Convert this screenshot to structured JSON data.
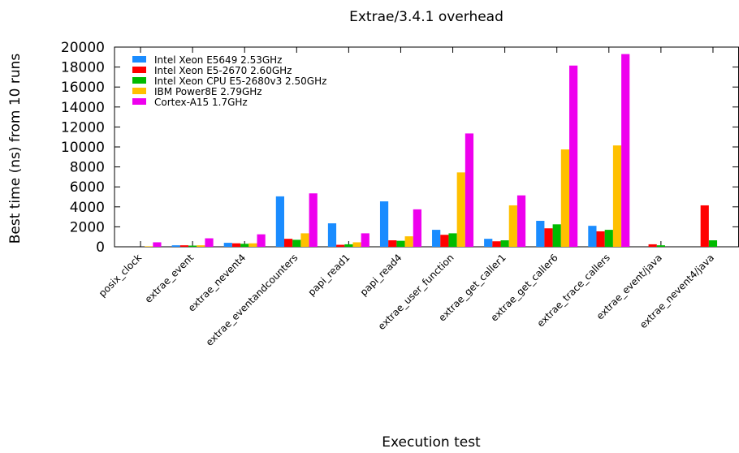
{
  "chart_data": {
    "type": "bar",
    "title": "Extrae/3.4.1 overhead",
    "xlabel": "Execution test",
    "ylabel": "Best time (ns) from 10 runs",
    "ylim": [
      0,
      20000
    ],
    "yticks": [
      0,
      2000,
      4000,
      6000,
      8000,
      10000,
      12000,
      14000,
      16000,
      18000,
      20000
    ],
    "grid": false,
    "legend_position": "top-left",
    "categories": [
      "posix_clock",
      "extrae_event",
      "extrae_nevent4",
      "extrae_eventandcounters",
      "papi_read1",
      "papi_read4",
      "extrae_user_function",
      "extrae_get_caller1",
      "extrae_get_caller6",
      "extrae_trace_callers",
      "extrae_event/java",
      "extrae_nevent4/java"
    ],
    "category_labels": [
      "posix_clock",
      "extrae_event",
      "extrae_nevent4",
      "extrae_eventandcounters",
      "papi_read1",
      "papi_read4",
      "extrae_user_function",
      "extrae_get_caller1",
      "extrae_get_caller6",
      "extrae_trace_callers",
      "extrae_event/java",
      "extrae_nevent4/java"
    ],
    "series": [
      {
        "name": "Intel Xeon E5649 2.53GHz",
        "color": "#1a8cff",
        "values": [
          0,
          150,
          400,
          5050,
          2350,
          4550,
          1700,
          800,
          2600,
          2100,
          0,
          0
        ]
      },
      {
        "name": "Intel Xeon E5-2670 2.60GHz",
        "color": "#ff0000",
        "values": [
          0,
          150,
          350,
          800,
          200,
          650,
          1200,
          550,
          1850,
          1550,
          250,
          4150
        ]
      },
      {
        "name": "Intel Xeon CPU E5-2680v3 2.50GHz",
        "color": "#00bb00",
        "values": [
          0,
          120,
          300,
          700,
          250,
          600,
          1350,
          650,
          2250,
          1700,
          150,
          650
        ]
      },
      {
        "name": "IBM Power8E 2.79GHz",
        "color": "#ffc000",
        "values": [
          50,
          150,
          350,
          1350,
          450,
          1050,
          7450,
          4150,
          9750,
          10150,
          0,
          0
        ]
      },
      {
        "name": "Cortex-A15 1.7GHz",
        "color": "#ee00ee",
        "values": [
          450,
          850,
          1250,
          5350,
          1350,
          3750,
          11350,
          5150,
          18150,
          19300,
          0,
          0
        ]
      }
    ]
  }
}
